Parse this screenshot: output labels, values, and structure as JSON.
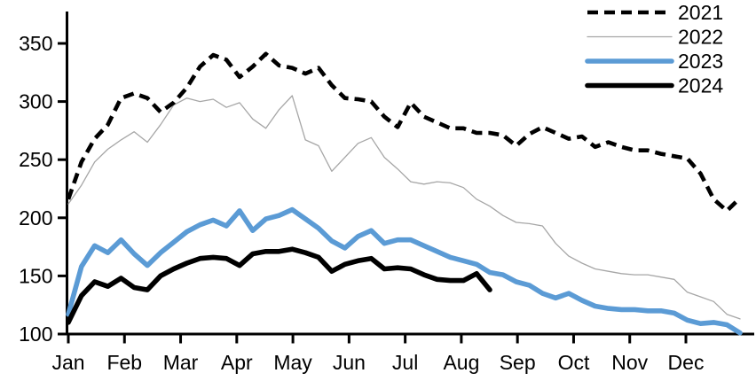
{
  "chart_data": {
    "type": "line",
    "title": "",
    "frequency": "weekly",
    "background_color": "#FFFFFF",
    "axis_color": "#000000",
    "grid": false,
    "legend_position": "top-right",
    "x_axis": {
      "label": "",
      "tick_labels": [
        "Jan",
        "Feb",
        "Mar",
        "Apr",
        "May",
        "Jun",
        "Jul",
        "Aug",
        "Sep",
        "Oct",
        "Nov",
        "Dec"
      ]
    },
    "y_axis": {
      "label": "",
      "tick_labels": [
        "100",
        "150",
        "200",
        "250",
        "300",
        "350"
      ],
      "min": 100,
      "max": 350
    },
    "series": [
      {
        "name": "2021",
        "color": "#000000",
        "style": "dashed",
        "stroke_width": 4.6,
        "values": [
          216,
          248,
          268,
          280,
          303,
          307,
          303,
          291,
          299,
          312,
          330,
          340,
          336,
          321,
          330,
          341,
          331,
          329,
          324,
          329,
          314,
          303,
          302,
          300,
          287,
          278,
          299,
          287,
          282,
          277,
          277,
          273,
          273,
          271,
          262,
          272,
          278,
          273,
          268,
          270,
          261,
          265,
          261,
          258,
          258,
          255,
          253,
          251,
          238,
          216,
          206,
          217
        ]
      },
      {
        "name": "2022",
        "color": "#A6A6A6",
        "style": "solid",
        "stroke_width": 1.3,
        "values": [
          212,
          228,
          248,
          259,
          267,
          274,
          265,
          280,
          297,
          303,
          300,
          302,
          295,
          299,
          285,
          277,
          293,
          305,
          267,
          262,
          240,
          252,
          264,
          269,
          252,
          242,
          231,
          229,
          231,
          230,
          226,
          216,
          210,
          202,
          196,
          195,
          193,
          178,
          167,
          161,
          156,
          154,
          152,
          151,
          151,
          149,
          147,
          136,
          132,
          128,
          117,
          113
        ]
      },
      {
        "name": "2023",
        "color": "#5B9BD5",
        "style": "solid",
        "stroke_width": 5.6,
        "values": [
          117,
          158,
          176,
          170,
          181,
          169,
          159,
          170,
          179,
          188,
          194,
          198,
          193,
          206,
          189,
          199,
          202,
          207,
          199,
          191,
          180,
          174,
          184,
          189,
          178,
          181,
          181,
          176,
          171,
          166,
          163,
          160,
          153,
          151,
          145,
          142,
          135,
          131,
          135,
          129,
          124,
          122,
          121,
          121,
          120,
          120,
          118,
          112,
          109,
          110,
          108,
          101
        ]
      },
      {
        "name": "2024",
        "color": "#000000",
        "style": "solid",
        "stroke_width": 5.6,
        "values": [
          110,
          133,
          145,
          141,
          148,
          140,
          138,
          150,
          156,
          161,
          165,
          166,
          165,
          159,
          169,
          171,
          171,
          173,
          170,
          166,
          154,
          160,
          163,
          165,
          156,
          157,
          156,
          151,
          147,
          146,
          146,
          152,
          138
        ]
      }
    ]
  }
}
